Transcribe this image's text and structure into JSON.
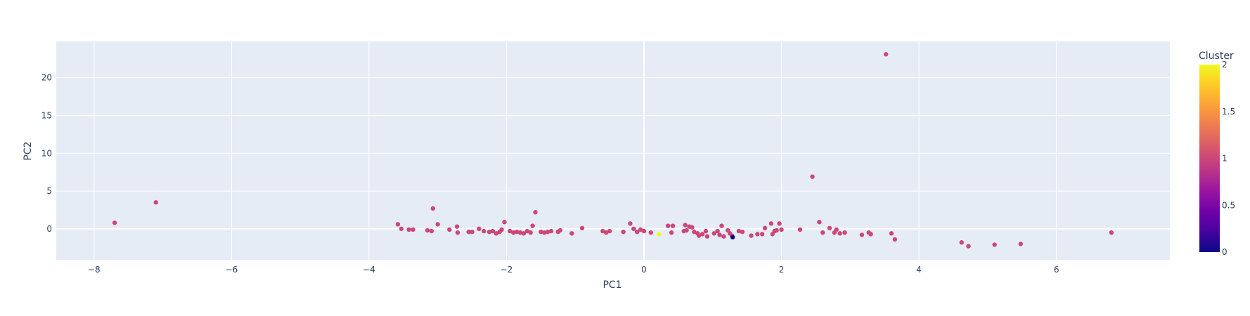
{
  "chart_data": {
    "type": "scatter",
    "title": "",
    "xlabel": "PC1",
    "ylabel": "PC2",
    "xlim": [
      -8.55,
      7.65
    ],
    "ylim": [
      -4.1,
      24.8
    ],
    "xticks": [
      -8,
      -6,
      -4,
      -2,
      0,
      2,
      4,
      6
    ],
    "xtick_labels": [
      "−8",
      "−6",
      "−4",
      "−2",
      "0",
      "2",
      "4",
      "6"
    ],
    "yticks": [
      0,
      5,
      10,
      15,
      20
    ],
    "ytick_labels": [
      "0",
      "5",
      "10",
      "15",
      "20"
    ],
    "grid": true,
    "colors": {
      "plot_bg": "#e5ecf6",
      "grid": "#ffffff",
      "cluster0": "#0d0887",
      "cluster1": "#cc4778",
      "cluster2": "#f0f921"
    },
    "colorbar": {
      "title": "Cluster",
      "min": 0,
      "max": 2,
      "ticks": [
        0,
        0.5,
        1,
        1.5,
        2
      ],
      "tick_labels": [
        "0",
        "0.5",
        "1",
        "1.5",
        "2"
      ],
      "colorscale": [
        "#0d0887",
        "#46039f",
        "#7201a8",
        "#9c179e",
        "#bd3786",
        "#d8576b",
        "#ed7953",
        "#fb9f3a",
        "#fdca26",
        "#f0f921"
      ]
    },
    "points": [
      [
        -7.7,
        0.8,
        1
      ],
      [
        -7.1,
        3.5,
        1
      ],
      [
        -3.58,
        0.6,
        1
      ],
      [
        -3.53,
        0.0,
        1
      ],
      [
        -3.42,
        -0.1,
        1
      ],
      [
        -3.36,
        -0.1,
        1
      ],
      [
        -3.15,
        -0.2,
        1
      ],
      [
        -3.09,
        -0.3,
        1
      ],
      [
        -3.07,
        2.7,
        1
      ],
      [
        -3.0,
        0.6,
        1
      ],
      [
        -2.83,
        -0.1,
        1
      ],
      [
        -2.72,
        0.3,
        1
      ],
      [
        -2.71,
        -0.5,
        1
      ],
      [
        -2.55,
        -0.4,
        1
      ],
      [
        -2.5,
        -0.4,
        1
      ],
      [
        -2.4,
        0.0,
        1
      ],
      [
        -2.33,
        -0.3,
        1
      ],
      [
        -2.25,
        -0.4,
        1
      ],
      [
        -2.2,
        -0.3,
        1
      ],
      [
        -2.15,
        -0.6,
        1
      ],
      [
        -2.1,
        -0.4,
        1
      ],
      [
        -2.07,
        -0.1,
        1
      ],
      [
        -2.03,
        0.9,
        1
      ],
      [
        -1.95,
        -0.3,
        1
      ],
      [
        -1.9,
        -0.5,
        1
      ],
      [
        -1.85,
        -0.4,
        1
      ],
      [
        -1.8,
        -0.5,
        1
      ],
      [
        -1.75,
        -0.6,
        1
      ],
      [
        -1.7,
        -0.3,
        1
      ],
      [
        -1.65,
        -0.5,
        1
      ],
      [
        -1.62,
        0.4,
        1
      ],
      [
        -1.58,
        2.2,
        1
      ],
      [
        -1.5,
        -0.4,
        1
      ],
      [
        -1.45,
        -0.5,
        1
      ],
      [
        -1.4,
        -0.4,
        1
      ],
      [
        -1.35,
        -0.3,
        1
      ],
      [
        -1.25,
        -0.4,
        1
      ],
      [
        -1.22,
        -0.2,
        1
      ],
      [
        -1.05,
        -0.6,
        1
      ],
      [
        -0.9,
        0.1,
        1
      ],
      [
        -0.6,
        -0.3,
        1
      ],
      [
        -0.55,
        -0.5,
        1
      ],
      [
        -0.5,
        -0.3,
        1
      ],
      [
        -0.3,
        -0.4,
        1
      ],
      [
        -0.2,
        0.7,
        1
      ],
      [
        -0.15,
        0.0,
        1
      ],
      [
        -0.1,
        -0.4,
        1
      ],
      [
        -0.05,
        -0.1,
        1
      ],
      [
        0.0,
        -0.3,
        1
      ],
      [
        0.1,
        -0.5,
        1
      ],
      [
        0.22,
        -0.7,
        2
      ],
      [
        0.35,
        0.4,
        1
      ],
      [
        0.4,
        -0.5,
        1
      ],
      [
        0.42,
        0.4,
        1
      ],
      [
        0.58,
        -0.3,
        1
      ],
      [
        0.6,
        0.5,
        1
      ],
      [
        0.62,
        -0.2,
        1
      ],
      [
        0.66,
        0.3,
        1
      ],
      [
        0.7,
        0.2,
        1
      ],
      [
        0.73,
        -0.4,
        1
      ],
      [
        0.78,
        -0.6,
        1
      ],
      [
        0.8,
        -0.9,
        1
      ],
      [
        0.85,
        -0.7,
        1
      ],
      [
        0.9,
        -0.3,
        1
      ],
      [
        0.92,
        -1.0,
        1
      ],
      [
        1.02,
        -0.6,
        1
      ],
      [
        1.07,
        -0.3,
        1
      ],
      [
        1.1,
        -0.8,
        1
      ],
      [
        1.13,
        0.4,
        1
      ],
      [
        1.16,
        -1.0,
        1
      ],
      [
        1.22,
        -0.2,
        1
      ],
      [
        1.25,
        -0.6,
        1
      ],
      [
        1.28,
        -0.9,
        1
      ],
      [
        1.29,
        -1.1,
        0
      ],
      [
        1.38,
        -0.3,
        1
      ],
      [
        1.43,
        -0.4,
        1
      ],
      [
        1.56,
        -0.9,
        1
      ],
      [
        1.65,
        -0.7,
        1
      ],
      [
        1.72,
        -0.7,
        1
      ],
      [
        1.76,
        0.1,
        1
      ],
      [
        1.85,
        0.7,
        1
      ],
      [
        1.87,
        -0.7,
        1
      ],
      [
        1.9,
        -0.3,
        1
      ],
      [
        1.93,
        -0.2,
        1
      ],
      [
        1.97,
        0.7,
        1
      ],
      [
        2.0,
        -0.1,
        1
      ],
      [
        2.27,
        -0.1,
        1
      ],
      [
        2.45,
        6.9,
        1
      ],
      [
        2.55,
        0.9,
        1
      ],
      [
        2.6,
        -0.5,
        1
      ],
      [
        2.7,
        0.1,
        1
      ],
      [
        2.77,
        -0.5,
        1
      ],
      [
        2.8,
        -0.1,
        1
      ],
      [
        2.85,
        -0.6,
        1
      ],
      [
        2.92,
        -0.5,
        1
      ],
      [
        3.17,
        -0.8,
        1
      ],
      [
        3.27,
        -0.5,
        1
      ],
      [
        3.3,
        -0.7,
        1
      ],
      [
        3.52,
        23.1,
        1
      ],
      [
        3.6,
        -0.6,
        1
      ],
      [
        3.65,
        -1.4,
        1
      ],
      [
        4.62,
        -1.8,
        1
      ],
      [
        4.72,
        -2.3,
        1
      ],
      [
        5.1,
        -2.1,
        1
      ],
      [
        5.48,
        -2.0,
        1
      ],
      [
        6.8,
        -0.5,
        1
      ]
    ]
  }
}
